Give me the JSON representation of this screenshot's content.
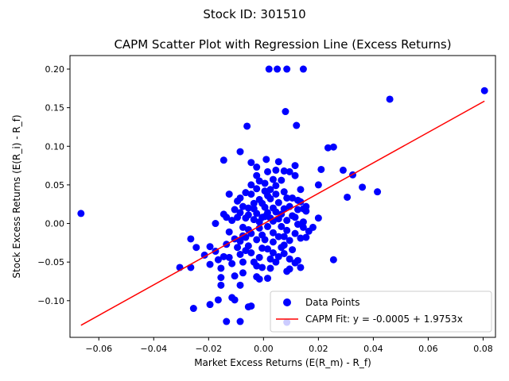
{
  "colors": {
    "points": "#0000ff",
    "fit_line": "#ff0000",
    "axes": "#000000",
    "background": "#ffffff",
    "legend_border": "#cccccc"
  },
  "chart_data": {
    "type": "scatter",
    "suptitle": "Stock ID: 301510",
    "title": "CAPM Scatter Plot with Regression Line (Excess Returns)",
    "xlabel": "Market Excess Returns (E(R_m) - R_f)",
    "ylabel": "Stock Excess Returns (E(R_i) - R_f)",
    "xlim": [
      -0.0705,
      0.0845
    ],
    "ylim": [
      -0.1475,
      0.2175
    ],
    "x_ticks": [
      -0.06,
      -0.04,
      -0.02,
      0.0,
      0.02,
      0.04,
      0.06,
      0.08
    ],
    "x_tick_labels": [
      "−0.06",
      "−0.04",
      "−0.02",
      "0.00",
      "0.02",
      "0.04",
      "0.06",
      "0.08"
    ],
    "y_ticks": [
      -0.1,
      -0.05,
      0.0,
      0.05,
      0.1,
      0.15,
      0.2
    ],
    "y_tick_labels": [
      "−0.10",
      "−0.05",
      "0.00",
      "0.05",
      "0.10",
      "0.15",
      "0.20"
    ],
    "grid": false,
    "legend_position": "lower-right",
    "series": [
      {
        "name": "Data Points",
        "kind": "scatter",
        "points": [
          [
            -0.0665,
            0.013
          ],
          [
            0.0805,
            0.172
          ],
          [
            0.046,
            0.161
          ],
          [
            0.0415,
            0.041
          ],
          [
            0.036,
            0.047
          ],
          [
            0.0325,
            0.063
          ],
          [
            0.0305,
            0.034
          ],
          [
            0.029,
            0.069
          ],
          [
            0.0255,
            0.099
          ],
          [
            0.0235,
            0.098
          ],
          [
            0.0255,
            -0.047
          ],
          [
            0.021,
            0.07
          ],
          [
            0.02,
            0.05
          ],
          [
            0.02,
            0.007
          ],
          [
            0.018,
            -0.005
          ],
          [
            0.002,
            0.2
          ],
          [
            0.005,
            0.2
          ],
          [
            0.0085,
            0.2
          ],
          [
            0.0145,
            0.2
          ],
          [
            0.008,
            0.145
          ],
          [
            0.012,
            0.127
          ],
          [
            -0.006,
            0.126
          ],
          [
            -0.0145,
            0.082
          ],
          [
            -0.0085,
            0.093
          ],
          [
            -0.0045,
            0.079
          ],
          [
            0.001,
            0.083
          ],
          [
            0.0055,
            0.08
          ],
          [
            0.0095,
            0.067
          ],
          [
            0.0115,
            0.062
          ],
          [
            0.0115,
            0.075
          ],
          [
            0.0075,
            0.068
          ],
          [
            0.0045,
            0.069
          ],
          [
            0.0015,
            0.067
          ],
          [
            -0.0025,
            0.062
          ],
          [
            -0.0025,
            0.073
          ],
          [
            0.0135,
            0.044
          ],
          [
            0.0135,
            0.028
          ],
          [
            0.0155,
            0.022
          ],
          [
            0.0155,
            0.016
          ],
          [
            0.0145,
            0.002
          ],
          [
            0.0145,
            -0.005
          ],
          [
            0.0135,
            -0.019
          ],
          [
            0.0125,
            -0.048
          ],
          [
            0.0135,
            -0.057
          ],
          [
            0.0075,
            -0.028
          ],
          [
            0.0035,
            -0.024
          ],
          [
            0.0085,
            -0.062
          ],
          [
            0.0095,
            -0.059
          ],
          [
            0.0085,
            -0.128
          ],
          [
            -0.0015,
            -0.072
          ],
          [
            -0.0025,
            -0.069
          ],
          [
            0.0015,
            -0.071
          ],
          [
            -0.0055,
            -0.108
          ],
          [
            -0.0045,
            -0.107
          ],
          [
            -0.0085,
            -0.127
          ],
          [
            -0.0135,
            -0.127
          ],
          [
            -0.0195,
            -0.105
          ],
          [
            -0.0165,
            -0.099
          ],
          [
            -0.0105,
            -0.099
          ],
          [
            -0.0115,
            -0.096
          ],
          [
            -0.0085,
            -0.08
          ],
          [
            -0.0155,
            -0.08
          ],
          [
            -0.0255,
            -0.11
          ],
          [
            -0.0305,
            -0.057
          ],
          [
            -0.0265,
            -0.057
          ],
          [
            -0.0265,
            -0.02
          ],
          [
            -0.0245,
            -0.031
          ],
          [
            -0.0215,
            -0.041
          ],
          [
            -0.0195,
            -0.03
          ],
          [
            -0.0195,
            -0.053
          ],
          [
            -0.0175,
            -0.036
          ],
          [
            -0.0165,
            -0.047
          ],
          [
            -0.0155,
            -0.058
          ],
          [
            -0.0155,
            -0.07
          ],
          [
            -0.0145,
            -0.043
          ],
          [
            -0.0135,
            -0.027
          ],
          [
            -0.0125,
            -0.044
          ],
          [
            -0.0115,
            -0.052
          ],
          [
            -0.0105,
            -0.068
          ],
          [
            -0.0095,
            -0.031
          ],
          [
            -0.0085,
            -0.04
          ],
          [
            -0.0075,
            -0.05
          ],
          [
            -0.0075,
            -0.064
          ],
          [
            -0.0065,
            -0.018
          ],
          [
            -0.0055,
            -0.029
          ],
          [
            -0.0045,
            -0.038
          ],
          [
            -0.0035,
            -0.05
          ],
          [
            -0.0025,
            -0.055
          ],
          [
            -0.0015,
            -0.044
          ],
          [
            -0.0005,
            -0.032
          ],
          [
            0.0005,
            -0.021
          ],
          [
            0.0015,
            -0.033
          ],
          [
            0.0025,
            -0.046
          ],
          [
            0.0035,
            -0.038
          ],
          [
            0.0045,
            -0.05
          ],
          [
            0.0055,
            -0.043
          ],
          [
            0.0065,
            -0.031
          ],
          [
            0.0075,
            -0.017
          ],
          [
            0.0085,
            -0.009
          ],
          [
            0.0095,
            -0.022
          ],
          [
            0.0105,
            -0.034
          ],
          [
            0.0115,
            -0.013
          ],
          [
            0.0125,
            -0.001
          ],
          [
            0.0105,
            0.01
          ],
          [
            0.0095,
            0.022
          ],
          [
            0.0085,
            0.033
          ],
          [
            0.0075,
            0.041
          ],
          [
            0.0065,
            0.012
          ],
          [
            0.0055,
            0.027
          ],
          [
            0.0045,
            0.049
          ],
          [
            0.0035,
            0.057
          ],
          [
            0.0025,
            0.044
          ],
          [
            0.0015,
            0.036
          ],
          [
            0.0005,
            0.021
          ],
          [
            -0.0005,
            0.008
          ],
          [
            -0.0015,
            -0.006
          ],
          [
            -0.0025,
            0.013
          ],
          [
            -0.0035,
            0.026
          ],
          [
            -0.0045,
            0.038
          ],
          [
            -0.0055,
            0.02
          ],
          [
            -0.0065,
            0.007
          ],
          [
            -0.0075,
            -0.005
          ],
          [
            -0.0085,
            0.014
          ],
          [
            -0.0095,
            0.029
          ],
          [
            -0.0105,
            0.018
          ],
          [
            -0.0115,
            0.004
          ],
          [
            -0.0125,
            -0.011
          ],
          [
            -0.0135,
            0.008
          ],
          [
            -0.0145,
            0.012
          ],
          [
            -0.0175,
            0.0
          ],
          [
            -0.0125,
            0.038
          ],
          [
            -0.0085,
            0.033
          ],
          [
            -0.0065,
            0.04
          ],
          [
            -0.0045,
            0.05
          ],
          [
            -0.0025,
            0.045
          ],
          [
            -0.0015,
            0.055
          ],
          [
            0.0005,
            0.052
          ],
          [
            0.0025,
            0.032
          ],
          [
            0.0035,
            0.02
          ],
          [
            0.0055,
            0.006
          ],
          [
            0.0065,
            -0.004
          ],
          [
            0.0085,
            0.004
          ],
          [
            0.0105,
            0.033
          ],
          [
            0.0125,
            0.018
          ],
          [
            0.0125,
            0.03
          ],
          [
            0.0145,
            0.019
          ],
          [
            0.0165,
            -0.01
          ],
          [
            0.0155,
            -0.018
          ],
          [
            0.0035,
            0.003
          ],
          [
            0.0015,
            0.014
          ],
          [
            -0.0005,
            0.026
          ],
          [
            -0.0035,
            0.005
          ],
          [
            -0.0055,
            -0.008
          ],
          [
            -0.0075,
            0.022
          ],
          [
            -0.0095,
            0.008
          ],
          [
            -0.0105,
            -0.02
          ],
          [
            -0.0085,
            -0.023
          ],
          [
            -0.0065,
            -0.035
          ],
          [
            -0.0045,
            -0.013
          ],
          [
            -0.0025,
            -0.021
          ],
          [
            -0.0005,
            -0.015
          ],
          [
            0.0015,
            -0.004
          ],
          [
            0.0025,
            0.007
          ],
          [
            0.0045,
            0.015
          ],
          [
            0.0055,
            -0.017
          ],
          [
            0.0075,
            -0.039
          ],
          [
            0.0095,
            -0.046
          ],
          [
            0.0115,
            -0.051
          ],
          [
            0.0025,
            -0.058
          ],
          [
            -0.0005,
            -0.057
          ],
          [
            -0.0035,
            0.019
          ],
          [
            -0.0015,
            0.031
          ],
          [
            0.0005,
            0.042
          ],
          [
            0.0045,
            0.038
          ],
          [
            0.0065,
            0.056
          ],
          [
            0.0005,
            0.009
          ],
          [
            -0.0015,
            0.002
          ],
          [
            0.0035,
            -0.012
          ],
          [
            -0.0055,
            0.011
          ],
          [
            0.0115,
            0.008
          ],
          [
            -0.0075,
            -0.016
          ],
          [
            0.0075,
            0.019
          ]
        ]
      },
      {
        "name": "CAPM Fit: y = -0.0005 + 1.9753x",
        "kind": "line",
        "intercept": -0.0005,
        "slope": 1.9753,
        "x_range": [
          -0.0665,
          0.0805
        ]
      }
    ]
  }
}
